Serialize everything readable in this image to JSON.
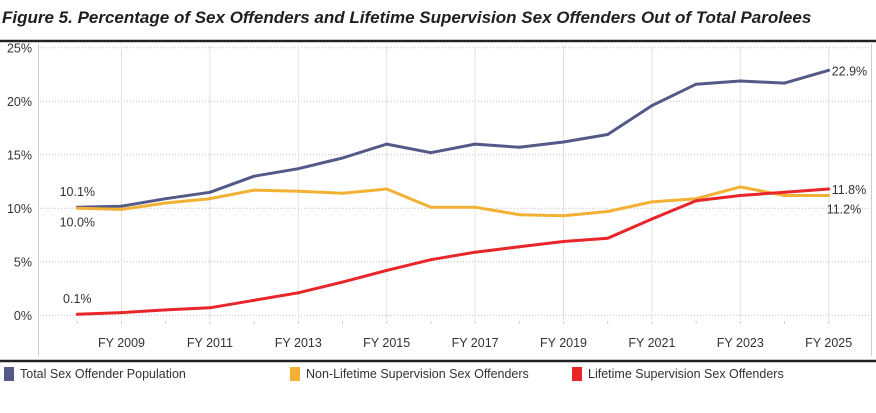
{
  "chart_data": {
    "type": "line",
    "title": "Figure 5.  Percentage of Sex Offenders and Lifetime Supervision Sex Offenders Out of Total Parolees",
    "x": [
      2008,
      2009,
      2010,
      2011,
      2012,
      2013,
      2014,
      2015,
      2016,
      2017,
      2018,
      2019,
      2020,
      2021,
      2022,
      2023,
      2024,
      2025
    ],
    "x_tick_labels": [
      "FY 2009",
      "FY 2011",
      "FY 2013",
      "FY 2015",
      "FY 2017",
      "FY 2019",
      "FY 2021",
      "FY 2023",
      "FY 2025"
    ],
    "x_tick_years": [
      2009,
      2011,
      2013,
      2015,
      2017,
      2019,
      2021,
      2023,
      2025
    ],
    "y_tick_labels": [
      "0%",
      "5%",
      "10%",
      "15%",
      "20%",
      "25%"
    ],
    "y_ticks": [
      0,
      5,
      10,
      15,
      20,
      25
    ],
    "ylim": [
      0,
      25
    ],
    "grid": true,
    "legend_position": "bottom",
    "series": [
      {
        "name": "Total Sex Offender Population",
        "color": "#545a87",
        "values": [
          10.1,
          10.2,
          10.9,
          11.5,
          13.0,
          13.7,
          14.7,
          16.0,
          15.2,
          16.0,
          15.7,
          16.2,
          16.9,
          19.6,
          21.6,
          21.9,
          21.7,
          22.9
        ],
        "labels": [
          {
            "index": 0,
            "text": "10.1%",
            "pos": "above"
          },
          {
            "index": 17,
            "text": "22.9%",
            "pos": "right"
          }
        ]
      },
      {
        "name": "Non-Lifetime Supervision Sex Offenders",
        "color": "#f2b134",
        "values": [
          10.0,
          9.9,
          10.5,
          10.9,
          11.7,
          11.6,
          11.4,
          11.8,
          10.1,
          10.1,
          9.4,
          9.3,
          9.7,
          10.6,
          10.9,
          12.0,
          11.2,
          11.2
        ],
        "labels": [
          {
            "index": 0,
            "text": "10.0%",
            "pos": "below"
          },
          {
            "index": 17,
            "text": "11.2%",
            "pos": "below-right"
          }
        ]
      },
      {
        "name": "Lifetime Supervision Sex Offenders",
        "color": "#e8262a",
        "values": [
          0.1,
          0.25,
          0.5,
          0.7,
          1.4,
          2.1,
          3.1,
          4.2,
          5.2,
          5.9,
          6.4,
          6.9,
          7.2,
          9.0,
          10.7,
          11.2,
          11.5,
          11.8
        ],
        "labels": [
          {
            "index": 0,
            "text": "0.1%",
            "pos": "above"
          },
          {
            "index": 17,
            "text": "11.8%",
            "pos": "right"
          }
        ]
      }
    ]
  }
}
